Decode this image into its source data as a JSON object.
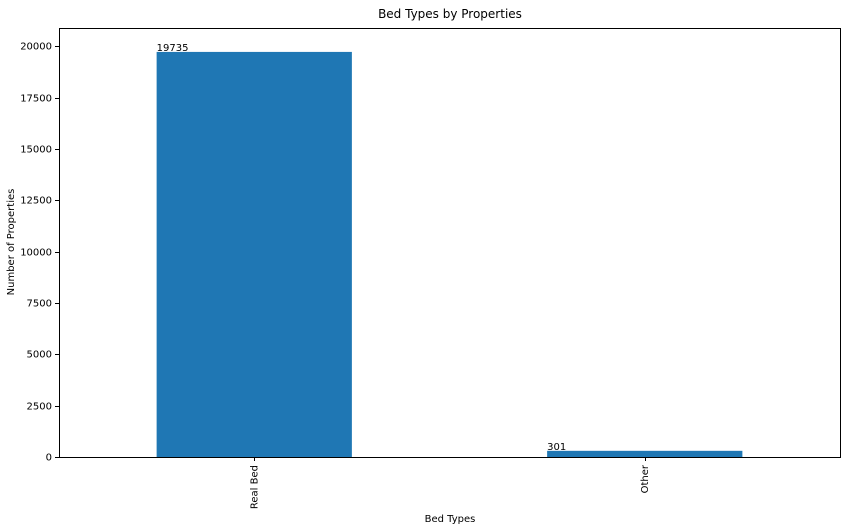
{
  "chart_data": {
    "type": "bar",
    "title": "Bed Types by Properties",
    "xlabel": "Bed Types",
    "ylabel": "Number of Properties",
    "categories": [
      "Real Bed",
      "Other"
    ],
    "values": [
      19735,
      301
    ],
    "data_labels": [
      "19735",
      "301"
    ],
    "ylim": [
      0,
      20900
    ],
    "yticks": [
      0,
      2500,
      5000,
      7500,
      10000,
      12500,
      15000,
      17500,
      20000
    ],
    "ytick_labels": [
      "0",
      "2500",
      "5000",
      "7500",
      "10000",
      "12500",
      "15000",
      "17500",
      "20000"
    ],
    "xtick_rotation": "vertical",
    "grid": false,
    "legend": "none",
    "bar_color": "#1f77b4"
  }
}
